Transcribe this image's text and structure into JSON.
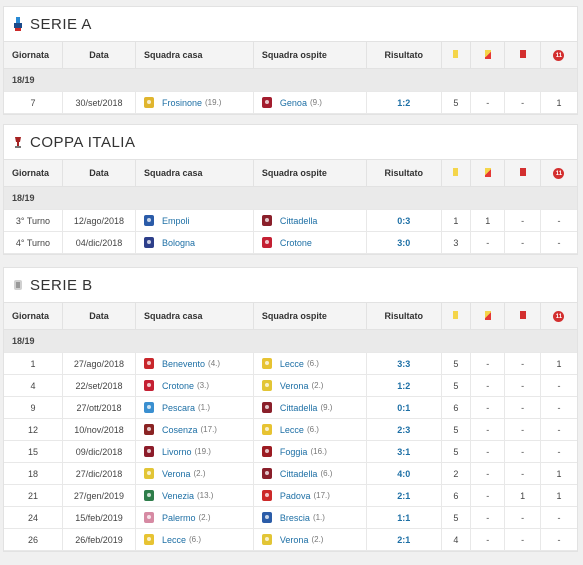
{
  "headers": {
    "giornata": "Giornata",
    "data": "Data",
    "casa": "Squadra casa",
    "ospite": "Squadra ospite",
    "risultato": "Risultato",
    "penalty_icon_text": "11"
  },
  "colors": {
    "link": "#1d6fa5",
    "yellow": "#f4d54a",
    "red": "#d32f2f"
  },
  "sections": [
    {
      "title": "SERIE A",
      "icon": "serie-a-logo-icon",
      "season": "18/19",
      "rows": [
        {
          "g": "7",
          "date": "30/set/2018",
          "home": "Frosinone",
          "home_pos": "(19.)",
          "home_color": "#e0b52e",
          "away": "Genoa",
          "away_pos": "(9.)",
          "away_color": "#a31d2e",
          "res": "1:2",
          "y": "5",
          "yr": "-",
          "r": "-",
          "p": "1"
        }
      ]
    },
    {
      "title": "COPPA ITALIA",
      "icon": "coppa-italia-logo-icon",
      "season": "18/19",
      "rows": [
        {
          "g": "3° Turno",
          "date": "12/ago/2018",
          "home": "Empoli",
          "home_pos": "",
          "home_color": "#2a5ba8",
          "away": "Cittadella",
          "away_pos": "",
          "away_color": "#8a1f2a",
          "res": "0:3",
          "y": "1",
          "yr": "1",
          "r": "-",
          "p": "-"
        },
        {
          "g": "4° Turno",
          "date": "04/dic/2018",
          "home": "Bologna",
          "home_pos": "",
          "home_color": "#2d3f8a",
          "away": "Crotone",
          "away_pos": "",
          "away_color": "#c42033",
          "res": "3:0",
          "y": "3",
          "yr": "-",
          "r": "-",
          "p": "-"
        }
      ]
    },
    {
      "title": "SERIE B",
      "icon": "serie-b-logo-icon",
      "season": "18/19",
      "rows": [
        {
          "g": "1",
          "date": "27/ago/2018",
          "home": "Benevento",
          "home_pos": "(4.)",
          "home_color": "#c8262b",
          "away": "Lecce",
          "away_pos": "(6.)",
          "away_color": "#e7c332",
          "res": "3:3",
          "y": "5",
          "yr": "-",
          "r": "-",
          "p": "1"
        },
        {
          "g": "4",
          "date": "22/set/2018",
          "home": "Crotone",
          "home_pos": "(3.)",
          "home_color": "#c42033",
          "away": "Verona",
          "away_pos": "(2.)",
          "away_color": "#e2c536",
          "res": "1:2",
          "y": "5",
          "yr": "-",
          "r": "-",
          "p": "-"
        },
        {
          "g": "9",
          "date": "27/ott/2018",
          "home": "Pescara",
          "home_pos": "(1.)",
          "home_color": "#3a8fd0",
          "away": "Cittadella",
          "away_pos": "(9.)",
          "away_color": "#8a1f2a",
          "res": "0:1",
          "y": "6",
          "yr": "-",
          "r": "-",
          "p": "-"
        },
        {
          "g": "12",
          "date": "10/nov/2018",
          "home": "Cosenza",
          "home_pos": "(17.)",
          "home_color": "#8a2323",
          "away": "Lecce",
          "away_pos": "(6.)",
          "away_color": "#e7c332",
          "res": "2:3",
          "y": "5",
          "yr": "-",
          "r": "-",
          "p": "-"
        },
        {
          "g": "15",
          "date": "09/dic/2018",
          "home": "Livorno",
          "home_pos": "(19.)",
          "home_color": "#8c1c2a",
          "away": "Foggia",
          "away_pos": "(16.)",
          "away_color": "#9c1b22",
          "res": "3:1",
          "y": "5",
          "yr": "-",
          "r": "-",
          "p": "-"
        },
        {
          "g": "18",
          "date": "27/dic/2018",
          "home": "Verona",
          "home_pos": "(2.)",
          "home_color": "#e2c536",
          "away": "Cittadella",
          "away_pos": "(6.)",
          "away_color": "#8a1f2a",
          "res": "4:0",
          "y": "2",
          "yr": "-",
          "r": "-",
          "p": "1"
        },
        {
          "g": "21",
          "date": "27/gen/2019",
          "home": "Venezia",
          "home_pos": "(13.)",
          "home_color": "#2e7d4a",
          "away": "Padova",
          "away_pos": "(17.)",
          "away_color": "#cc2a2a",
          "res": "2:1",
          "y": "6",
          "yr": "-",
          "r": "1",
          "p": "1"
        },
        {
          "g": "24",
          "date": "15/feb/2019",
          "home": "Palermo",
          "home_pos": "(2.)",
          "home_color": "#d68aa3",
          "away": "Brescia",
          "away_pos": "(1.)",
          "away_color": "#2b5ca8",
          "res": "1:1",
          "y": "5",
          "yr": "-",
          "r": "-",
          "p": "-"
        },
        {
          "g": "26",
          "date": "26/feb/2019",
          "home": "Lecce",
          "home_pos": "(6.)",
          "home_color": "#e7c332",
          "away": "Verona",
          "away_pos": "(2.)",
          "away_color": "#e2c536",
          "res": "2:1",
          "y": "4",
          "yr": "-",
          "r": "-",
          "p": "-"
        }
      ]
    }
  ]
}
